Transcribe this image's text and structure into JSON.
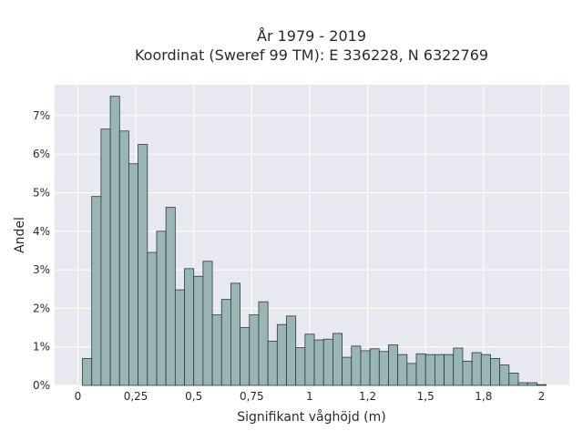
{
  "chart_data": {
    "type": "bar",
    "title_line1": "År 1979 - 2019",
    "title_line2": "Koordinat (Sweref 99 TM): E 336228, N 6322769",
    "xlabel": "Signifikant våghöjd (m)",
    "ylabel": "Andel",
    "xlim": [
      -0.1,
      2.12
    ],
    "ylim": [
      0,
      7.8
    ],
    "x_ticks": [
      {
        "value": 0,
        "label": "0"
      },
      {
        "value": 0.25,
        "label": "0,25"
      },
      {
        "value": 0.5,
        "label": "0,5"
      },
      {
        "value": 0.75,
        "label": "0,75"
      },
      {
        "value": 1,
        "label": "1"
      },
      {
        "value": 1.25,
        "label": "1,2"
      },
      {
        "value": 1.5,
        "label": "1,5"
      },
      {
        "value": 1.75,
        "label": "1,8"
      },
      {
        "value": 2,
        "label": "2"
      }
    ],
    "y_ticks": [
      {
        "value": 0,
        "label": "0%"
      },
      {
        "value": 1,
        "label": "1%"
      },
      {
        "value": 2,
        "label": "2%"
      },
      {
        "value": 3,
        "label": "3%"
      },
      {
        "value": 4,
        "label": "4%"
      },
      {
        "value": 5,
        "label": "5%"
      },
      {
        "value": 6,
        "label": "6%"
      },
      {
        "value": 7,
        "label": "7%"
      }
    ],
    "bin_start": 0.02,
    "bin_width": 0.04,
    "values": [
      0.7,
      4.9,
      6.65,
      7.5,
      6.6,
      5.75,
      6.25,
      3.45,
      4.0,
      4.62,
      2.48,
      3.03,
      2.83,
      3.22,
      1.83,
      2.23,
      2.65,
      1.5,
      1.83,
      2.17,
      1.15,
      1.58,
      1.8,
      0.98,
      1.33,
      1.18,
      1.2,
      1.35,
      0.73,
      1.02,
      0.9,
      0.95,
      0.88,
      1.05,
      0.8,
      0.57,
      0.82,
      0.8,
      0.8,
      0.8,
      0.97,
      0.63,
      0.85,
      0.8,
      0.7,
      0.53,
      0.32,
      0.07,
      0.07,
      0.02
    ],
    "colors": {
      "background": "#e8e8f0",
      "grid": "#ffffff",
      "bar_fill": "#9ab5b5",
      "bar_stroke": "#2d3a3a"
    }
  }
}
